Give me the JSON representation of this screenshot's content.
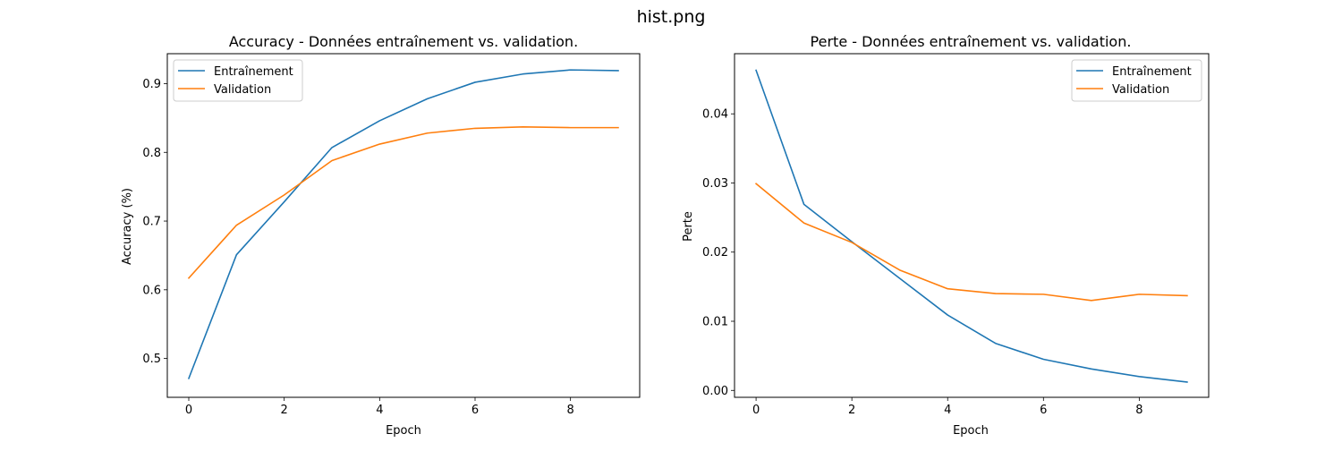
{
  "figure": {
    "suptitle": "hist.png"
  },
  "colors": {
    "train": "#1f77b4",
    "val": "#ff7f0e"
  },
  "chart_data": [
    {
      "type": "line",
      "title": "Accuracy - Données entraînement vs. validation.",
      "xlabel": "Epoch",
      "ylabel": "Accuracy (%)",
      "x": [
        0,
        1,
        2,
        3,
        4,
        5,
        6,
        7,
        8,
        9
      ],
      "xlim": [
        -0.45,
        9.45
      ],
      "ylim": [
        0.4435,
        0.9436
      ],
      "xticks": [
        0,
        2,
        4,
        6,
        8
      ],
      "xtick_labels": [
        "0",
        "2",
        "4",
        "6",
        "8"
      ],
      "yticks": [
        0.5,
        0.6,
        0.7,
        0.8,
        0.9
      ],
      "ytick_labels": [
        "0.5",
        "0.6",
        "0.7",
        "0.8",
        "0.9"
      ],
      "legend": "top-left",
      "grid": false,
      "series": [
        {
          "name": "Entraînement",
          "color": "#1f77b4",
          "values": [
            0.471,
            0.651,
            0.728,
            0.807,
            0.846,
            0.878,
            0.902,
            0.914,
            0.92,
            0.919
          ]
        },
        {
          "name": "Validation",
          "color": "#ff7f0e",
          "values": [
            0.617,
            0.694,
            0.738,
            0.788,
            0.812,
            0.828,
            0.835,
            0.837,
            0.836,
            0.836
          ]
        }
      ]
    },
    {
      "type": "line",
      "title": "Perte - Données entraînement vs. validation.",
      "xlabel": "Epoch",
      "ylabel": "Perte",
      "x": [
        0,
        1,
        2,
        3,
        4,
        5,
        6,
        7,
        8,
        9
      ],
      "xlim": [
        -0.45,
        9.45
      ],
      "ylim": [
        -0.001,
        0.0487
      ],
      "xticks": [
        0,
        2,
        4,
        6,
        8
      ],
      "xtick_labels": [
        "0",
        "2",
        "4",
        "6",
        "8"
      ],
      "yticks": [
        0.0,
        0.01,
        0.02,
        0.03,
        0.04
      ],
      "ytick_labels": [
        "0.00",
        "0.01",
        "0.02",
        "0.03",
        "0.04"
      ],
      "legend": "top-right",
      "grid": false,
      "series": [
        {
          "name": "Entraînement",
          "color": "#1f77b4",
          "values": [
            0.0463,
            0.0269,
            0.0215,
            0.0162,
            0.0109,
            0.0068,
            0.0045,
            0.0031,
            0.002,
            0.0012
          ]
        },
        {
          "name": "Validation",
          "color": "#ff7f0e",
          "values": [
            0.0299,
            0.0242,
            0.0214,
            0.0174,
            0.0147,
            0.014,
            0.0139,
            0.013,
            0.0139,
            0.0137
          ]
        }
      ]
    }
  ]
}
